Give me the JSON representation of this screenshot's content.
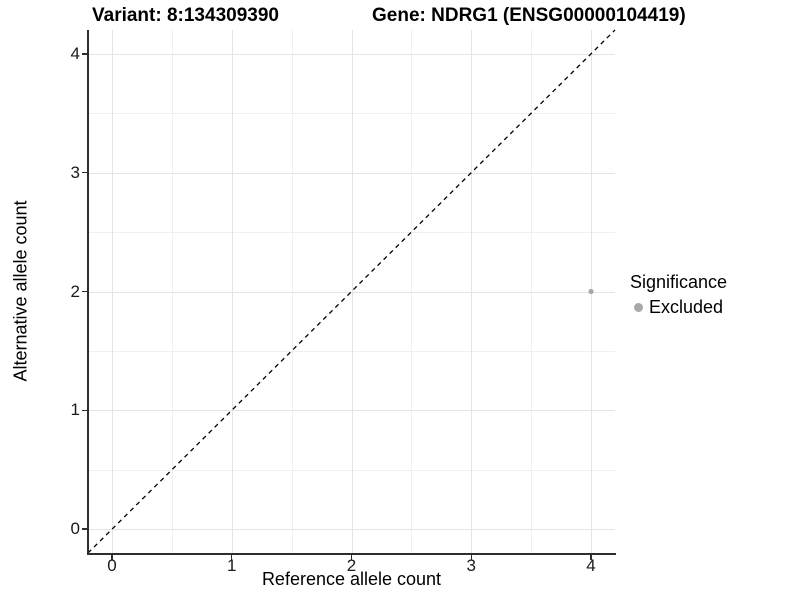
{
  "chart_data": {
    "type": "scatter",
    "title_left": "Variant: 8:134309390",
    "title_right": "Gene: NDRG1 (ENSG00000104419)",
    "xlabel": "Reference allele count",
    "ylabel": "Alternative allele count",
    "xlim": [
      -0.2,
      4.2
    ],
    "ylim": [
      -0.2,
      4.2
    ],
    "x_ticks": [
      0,
      1,
      2,
      3,
      4
    ],
    "y_ticks": [
      0,
      1,
      2,
      3,
      4
    ],
    "x_minor_ticks": [
      0.5,
      1.5,
      2.5,
      3.5
    ],
    "y_minor_ticks": [
      0.5,
      1.5,
      2.5,
      3.5
    ],
    "grid": "major+minor",
    "reference_line": {
      "slope": 1,
      "intercept": 0,
      "linetype": "dashed",
      "color": "#000000"
    },
    "series": [
      {
        "name": "Excluded",
        "color": "#a8a8a8",
        "point_radius": 2.6,
        "points": [
          {
            "x": 4,
            "y": 2
          }
        ]
      }
    ],
    "legend": {
      "position": "right",
      "title": "Significance",
      "entries": [
        {
          "label": "Excluded",
          "color": "#a8a8a8"
        }
      ]
    }
  },
  "colors": {
    "background": "#ffffff",
    "axis_line": "#2e2e2e",
    "grid_major": "#e4e4e4",
    "grid_minor": "#f0f0f0",
    "text": "#000000",
    "point": "#a8a8a8"
  }
}
